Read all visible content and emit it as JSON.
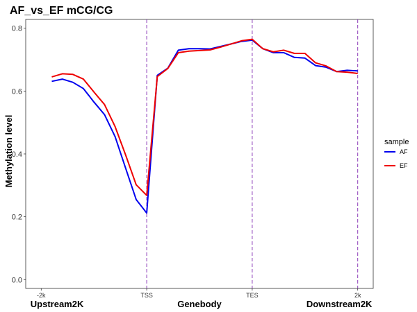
{
  "chart_data": {
    "type": "line",
    "title": "AF_vs_EF  mCG/CG",
    "xlabel": "",
    "ylabel": "Methylation level",
    "xlim": [
      0,
      60
    ],
    "ylim": [
      0.0,
      0.8
    ],
    "y_ticks": [
      "0.0",
      "0.2",
      "0.4",
      "0.6",
      "0.8"
    ],
    "x_ticks": [
      {
        "x": 0,
        "label": "-2k"
      },
      {
        "x": 20,
        "label": "TSS"
      },
      {
        "x": 40,
        "label": "TES"
      },
      {
        "x": 60,
        "label": "2k"
      }
    ],
    "vlines": [
      20,
      40,
      60
    ],
    "vline_color": "#8B3AB8",
    "region_labels": [
      {
        "x": 3,
        "label": "Upstream2K"
      },
      {
        "x": 30,
        "label": "Genebody"
      },
      {
        "x": 56.5,
        "label": "Downstream2K"
      }
    ],
    "grid": false,
    "legend": {
      "title": "sample",
      "position": "right"
    },
    "series": [
      {
        "name": "AF",
        "color": "#0000EE",
        "x": [
          2,
          4,
          6,
          8,
          10,
          12,
          14,
          16,
          18,
          20,
          20,
          22,
          24,
          26,
          28,
          30,
          32,
          34,
          36,
          38,
          40,
          42,
          44,
          46,
          48,
          50,
          52,
          54,
          56,
          58,
          60
        ],
        "y": [
          0.631,
          0.638,
          0.628,
          0.608,
          0.565,
          0.525,
          0.455,
          0.355,
          0.255,
          0.212,
          0.212,
          0.65,
          0.673,
          0.73,
          0.735,
          0.735,
          0.734,
          0.742,
          0.75,
          0.758,
          0.762,
          0.735,
          0.722,
          0.722,
          0.707,
          0.705,
          0.681,
          0.676,
          0.662,
          0.666,
          0.664
        ]
      },
      {
        "name": "EF",
        "color": "#EE0000",
        "x": [
          2,
          4,
          6,
          8,
          10,
          12,
          14,
          16,
          18,
          20,
          20,
          22,
          24,
          26,
          28,
          30,
          32,
          34,
          36,
          38,
          40,
          42,
          44,
          46,
          48,
          50,
          52,
          54,
          56,
          58,
          60
        ],
        "y": [
          0.645,
          0.655,
          0.653,
          0.638,
          0.597,
          0.557,
          0.487,
          0.397,
          0.302,
          0.268,
          0.268,
          0.646,
          0.672,
          0.722,
          0.727,
          0.729,
          0.731,
          0.74,
          0.75,
          0.76,
          0.765,
          0.735,
          0.725,
          0.73,
          0.72,
          0.72,
          0.69,
          0.68,
          0.662,
          0.66,
          0.656
        ]
      }
    ]
  }
}
